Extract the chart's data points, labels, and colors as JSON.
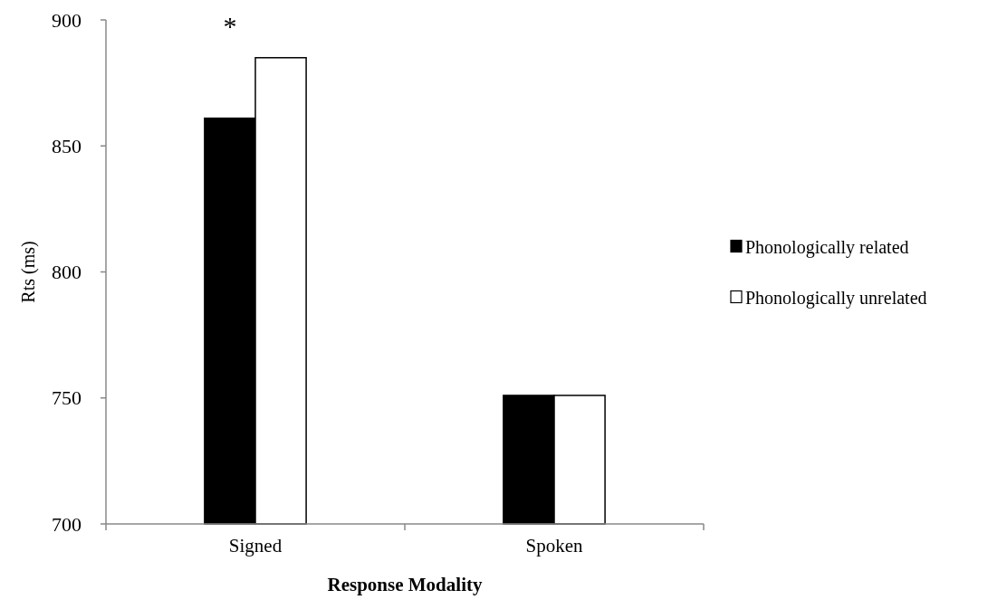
{
  "chart_data": {
    "type": "bar",
    "xlabel": "Response Modality",
    "ylabel": "Rts (ms)",
    "categories": [
      "Signed",
      "Spoken"
    ],
    "series": [
      {
        "name": "Phonologically related",
        "color": "#000000",
        "values": [
          861,
          751
        ]
      },
      {
        "name": "Phonologically unrelated",
        "color": "#ffffff",
        "values": [
          885,
          751
        ]
      }
    ],
    "ylim": [
      700,
      900
    ],
    "yticks": [
      700,
      750,
      800,
      850,
      900
    ],
    "legend": "right",
    "grid": false,
    "annotations": [
      "*"
    ]
  }
}
